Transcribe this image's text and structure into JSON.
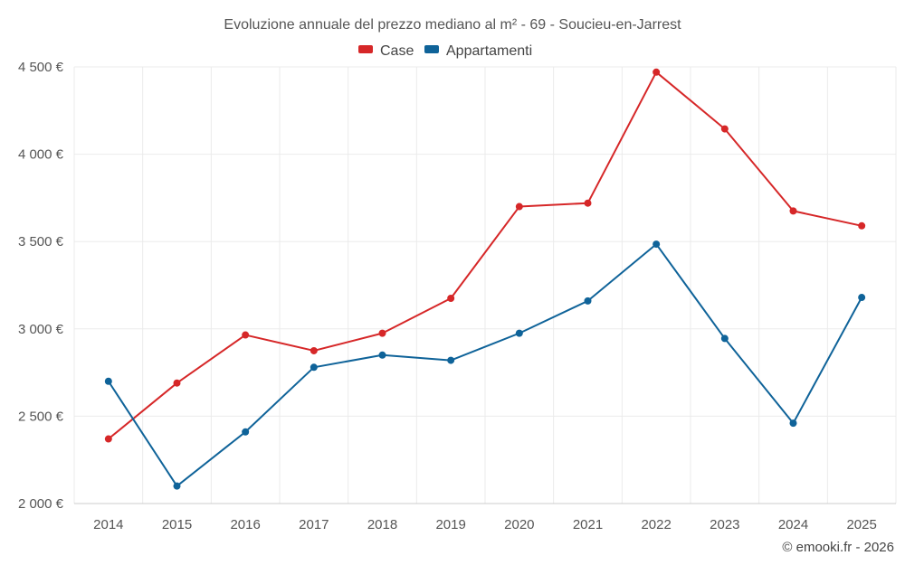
{
  "chart_data": {
    "type": "line",
    "title": "Evoluzione annuale del prezzo mediano al m² - 69 - Soucieu-en-Jarrest",
    "categories": [
      "2014",
      "2015",
      "2016",
      "2017",
      "2018",
      "2019",
      "2020",
      "2021",
      "2022",
      "2023",
      "2024",
      "2025"
    ],
    "series": [
      {
        "name": "Case",
        "color": "#d62728",
        "values": [
          2370,
          2690,
          2965,
          2875,
          2975,
          3175,
          3700,
          3720,
          4470,
          4145,
          3675,
          3590
        ]
      },
      {
        "name": "Appartamenti",
        "color": "#0f6399",
        "values": [
          2700,
          2100,
          2410,
          2780,
          2850,
          2820,
          2975,
          3160,
          3485,
          2945,
          2460,
          3180
        ]
      }
    ],
    "ylim": [
      2000,
      4500
    ],
    "yticks": [
      2000,
      2500,
      3000,
      3500,
      4000,
      4500
    ],
    "ytick_labels": [
      "2 000 €",
      "2 500 €",
      "3 000 €",
      "3 500 €",
      "4 000 €",
      "4 500 €"
    ],
    "xlabel": "",
    "ylabel": "",
    "grid": true,
    "legend_position": "top-center"
  },
  "credit": "© emooki.fr - 2026"
}
